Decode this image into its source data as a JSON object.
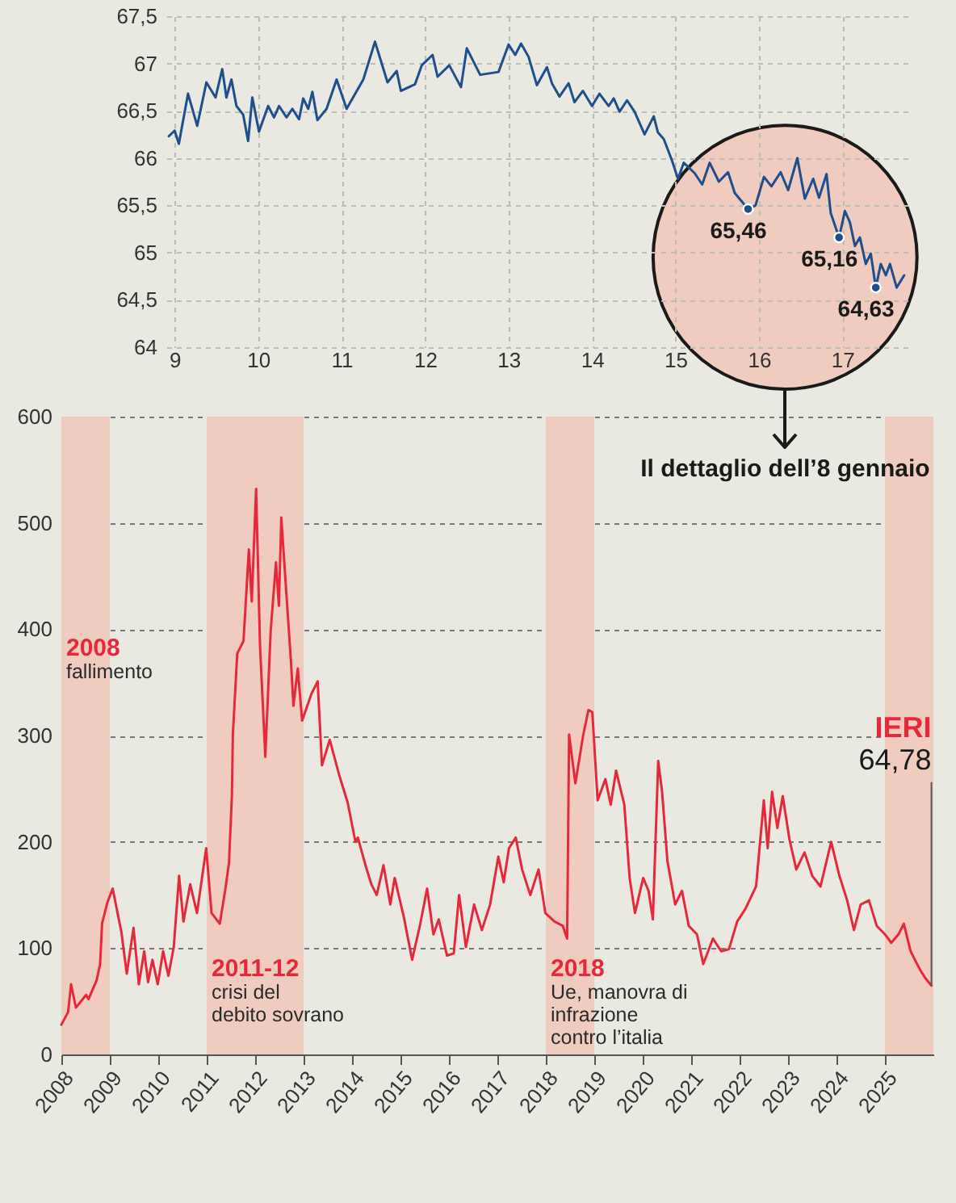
{
  "chart_data": [
    {
      "type": "line",
      "xlim": [
        8.9,
        17.8
      ],
      "xticks": [
        9,
        10,
        11,
        12,
        13,
        14,
        15,
        16,
        17
      ],
      "ylim": [
        64,
        67.5
      ],
      "yticks": [
        64,
        {
          "value": 64.5,
          "label": "64,5"
        },
        65,
        {
          "value": 65.5,
          "label": "65,5"
        },
        66,
        {
          "value": 66.5,
          "label": "66,5"
        },
        67,
        {
          "value": 67.5,
          "label": "67,5"
        }
      ],
      "grid": true,
      "series": [
        {
          "color": "#1f4e8c",
          "x": [
            8.93,
            9.0,
            9.05,
            9.16,
            9.27,
            9.38,
            9.49,
            9.57,
            9.62,
            9.68,
            9.74,
            9.82,
            9.88,
            9.93,
            10.01,
            10.12,
            10.19,
            10.25,
            10.34,
            10.41,
            10.49,
            10.54,
            10.6,
            10.65,
            10.71,
            10.82,
            10.94,
            11.06,
            11.26,
            11.4,
            11.55,
            11.66,
            11.71,
            11.88,
            11.96,
            12.09,
            12.15,
            12.29,
            12.43,
            12.5,
            12.66,
            12.88,
            13.0,
            13.08,
            13.15,
            13.24,
            13.34,
            13.46,
            13.52,
            13.61,
            13.72,
            13.79,
            13.89,
            14.0,
            14.09,
            14.2,
            14.26,
            14.33,
            14.42,
            14.51,
            14.63,
            14.74,
            14.79,
            14.86,
            14.96,
            15.03,
            15.1,
            15.23,
            15.32,
            15.41,
            15.52,
            15.63,
            15.71,
            15.87,
            15.96,
            16.06,
            16.15,
            16.26,
            16.35,
            16.46,
            16.55,
            16.65,
            16.72,
            16.81,
            16.86,
            16.96,
            17.03,
            17.09,
            17.15,
            17.21,
            17.28,
            17.34,
            17.4,
            17.46,
            17.52,
            17.57,
            17.65,
            17.74
          ],
          "values": [
            66.23,
            66.29,
            66.15,
            66.68,
            66.34,
            66.8,
            66.64,
            66.94,
            66.64,
            66.83,
            66.55,
            66.46,
            66.18,
            66.64,
            66.28,
            66.55,
            66.43,
            66.55,
            66.43,
            66.52,
            66.41,
            66.63,
            66.52,
            66.7,
            66.4,
            66.52,
            66.83,
            66.52,
            66.83,
            67.23,
            66.8,
            66.92,
            66.71,
            66.78,
            66.98,
            67.09,
            66.86,
            66.98,
            66.75,
            67.16,
            66.88,
            66.91,
            67.2,
            67.09,
            67.21,
            67.07,
            66.77,
            66.96,
            66.79,
            66.65,
            66.79,
            66.59,
            66.71,
            66.55,
            66.68,
            66.55,
            66.63,
            66.49,
            66.61,
            66.49,
            66.25,
            66.44,
            66.27,
            66.2,
            65.97,
            65.78,
            65.95,
            65.84,
            65.72,
            65.95,
            65.75,
            65.85,
            65.63,
            65.46,
            65.5,
            65.8,
            65.7,
            65.85,
            65.66,
            66.0,
            65.57,
            65.78,
            65.58,
            65.83,
            65.42,
            65.16,
            65.44,
            65.32,
            65.07,
            65.16,
            64.88,
            64.99,
            64.63,
            64.88,
            64.76,
            64.88,
            64.63,
            64.76
          ]
        }
      ],
      "annotations": [
        {
          "text": "65,46",
          "x": 15.87,
          "y": 65.46
        },
        {
          "text": "65,16",
          "x": 16.96,
          "y": 65.16
        },
        {
          "text": "64,63",
          "x": 17.4,
          "y": 64.63
        },
        "Il dettaglio dell’8 gennaio"
      ]
    },
    {
      "type": "line",
      "xlim": [
        2008,
        2026
      ],
      "xticks": [
        2008,
        2009,
        2010,
        2011,
        2012,
        2013,
        2014,
        2015,
        2016,
        2017,
        2018,
        2019,
        2020,
        2021,
        2022,
        2023,
        2024,
        2025
      ],
      "ylim": [
        0,
        600
      ],
      "yticks": [
        0,
        100,
        200,
        300,
        400,
        500,
        600
      ],
      "grid": "y",
      "series": [
        {
          "color": "#e6283c",
          "x": [
            2008.0,
            2008.14,
            2008.2,
            2008.3,
            2008.51,
            2008.56,
            2008.73,
            2008.8,
            2008.84,
            2008.95,
            2009.06,
            2009.16,
            2009.24,
            2009.35,
            2009.49,
            2009.6,
            2009.71,
            2009.79,
            2009.88,
            2009.99,
            2010.1,
            2010.21,
            2010.32,
            2010.43,
            2010.52,
            2010.66,
            2010.8,
            2010.99,
            2011.1,
            2011.27,
            2011.38,
            2011.46,
            2011.52,
            2011.54,
            2011.63,
            2011.76,
            2011.87,
            2011.93,
            2012.02,
            2012.1,
            2012.21,
            2012.32,
            2012.43,
            2012.49,
            2012.54,
            2012.65,
            2012.74,
            2012.79,
            2012.88,
            2012.97,
            2013.16,
            2013.29,
            2013.38,
            2013.54,
            2013.74,
            2013.91,
            2014.07,
            2014.12,
            2014.29,
            2014.4,
            2014.51,
            2014.65,
            2014.79,
            2014.88,
            2015.07,
            2015.24,
            2015.4,
            2015.55,
            2015.68,
            2015.79,
            2015.96,
            2016.1,
            2016.21,
            2016.35,
            2016.52,
            2016.68,
            2016.85,
            2017.02,
            2017.13,
            2017.24,
            2017.38,
            2017.51,
            2017.68,
            2017.85,
            2017.99,
            2018.18,
            2018.35,
            2018.44,
            2018.48,
            2018.61,
            2018.77,
            2018.88,
            2018.96,
            2019.07,
            2019.23,
            2019.34,
            2019.45,
            2019.62,
            2019.73,
            2019.84,
            2020.01,
            2020.12,
            2020.21,
            2020.32,
            2020.4,
            2020.51,
            2020.67,
            2020.81,
            2020.95,
            2021.12,
            2021.25,
            2021.45,
            2021.62,
            2021.78,
            2021.95,
            2022.12,
            2022.34,
            2022.5,
            2022.58,
            2022.67,
            2022.78,
            2022.89,
            2023.03,
            2023.17,
            2023.34,
            2023.5,
            2023.67,
            2023.89,
            2024.06,
            2024.22,
            2024.36,
            2024.5,
            2024.67,
            2024.83,
            2025.0,
            2025.13,
            2025.28,
            2025.39,
            2025.53,
            2025.72,
            2025.83,
            2025.96
          ],
          "values": [
            28,
            40,
            66,
            44,
            56,
            52,
            70,
            85,
            123,
            143,
            156,
            133,
            115,
            76,
            119,
            66,
            97,
            68,
            89,
            66,
            97,
            74,
            101,
            168,
            125,
            160,
            133,
            194,
            133,
            123,
            154,
            180,
            243,
            301,
            377,
            389,
            475,
            426,
            532,
            385,
            280,
            398,
            463,
            422,
            505,
            430,
            369,
            328,
            363,
            314,
            339,
            351,
            272,
            296,
            262,
            237,
            200,
            204,
            176,
            160,
            150,
            178,
            141,
            166,
            129,
            89,
            121,
            156,
            113,
            127,
            93,
            95,
            150,
            101,
            141,
            117,
            141,
            186,
            162,
            194,
            204,
            174,
            150,
            174,
            133,
            125,
            121,
            109,
            301,
            255,
            300,
            324,
            322,
            239,
            259,
            235,
            267,
            235,
            166,
            133,
            166,
            154,
            127,
            276,
            247,
            182,
            141,
            154,
            121,
            113,
            85,
            109,
            97,
            99,
            125,
            137,
            158,
            239,
            194,
            247,
            213,
            243,
            202,
            174,
            190,
            168,
            158,
            200,
            168,
            145,
            117,
            141,
            145,
            121,
            113,
            105,
            113,
            123,
            97,
            80,
            72,
            64.78
          ]
        }
      ],
      "bands": [
        {
          "axis": "x",
          "from": 2008,
          "to": 2009,
          "label": "2008 fallimento",
          "color": "#f0cbbf"
        },
        {
          "axis": "x",
          "from": 2011,
          "to": 2013,
          "label": "2011-12 crisi del debito sovrano",
          "color": "#f0cbbf"
        },
        {
          "axis": "x",
          "from": 2018,
          "to": 2019,
          "label": "2018 Ue, manovra di infrazione contro l’italia",
          "color": "#f0cbbf"
        },
        {
          "axis": "x",
          "from": 2025,
          "to": 2026,
          "color": "#f0cbbf"
        }
      ],
      "annotations": [
        {
          "text": "IERI 64,78",
          "x": 2025.96,
          "y": 64.78
        }
      ]
    }
  ]
}
